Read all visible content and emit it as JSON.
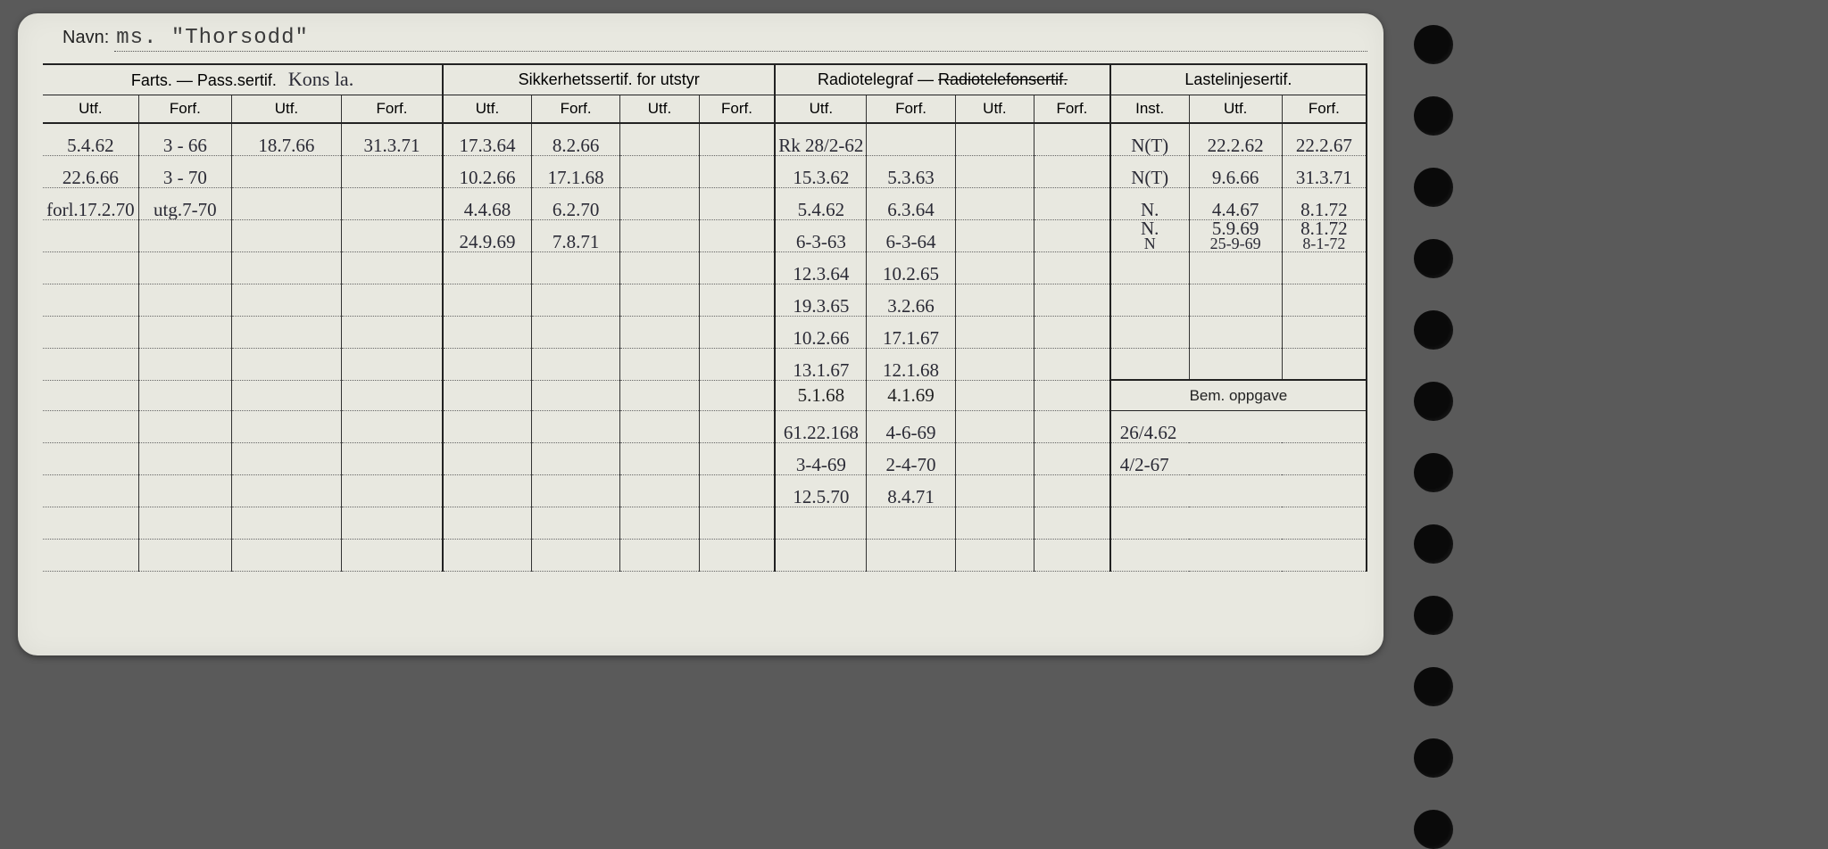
{
  "navn_label": "Navn:",
  "navn_value": "ms. \"Thorsodd\"",
  "sections": {
    "farts": {
      "title": "Farts. — Pass.sertif.",
      "annot": "Kons la.",
      "cols": [
        "Utf.",
        "Forf.",
        "Utf.",
        "Forf."
      ]
    },
    "sikkerhet": {
      "title": "Sikkerhetssertif. for utstyr",
      "cols": [
        "Utf.",
        "Forf.",
        "Utf.",
        "Forf."
      ]
    },
    "radio": {
      "title_a": "Radiotelegraf — ",
      "title_strike": "Radiotelefonsertif.",
      "cols": [
        "Utf.",
        "Forf.",
        "Utf.",
        "Forf."
      ]
    },
    "laste": {
      "title": "Lastelinjesertif.",
      "cols": [
        "Inst.",
        "Utf.",
        "Forf."
      ]
    }
  },
  "bem_header": "Bem. oppgave",
  "col_widths": [
    "6.8%",
    "6.6%",
    "7.8%",
    "7.2%",
    "6.3%",
    "6.3%",
    "5.6%",
    "5.4%",
    "6.5%",
    "6.3%",
    "5.6%",
    "5.4%",
    "5.6%",
    "6.6%",
    "6.0%"
  ],
  "rows": [
    {
      "c": [
        "5.4.62",
        "3 - 66",
        "18.7.66",
        "31.3.71",
        "17.3.64",
        "8.2.66",
        "",
        "",
        "Rk 28/2-62",
        "",
        "",
        "",
        "N(T)",
        "22.2.62",
        "22.2.67"
      ]
    },
    {
      "c": [
        "22.6.66",
        "3 - 70",
        "",
        "",
        "10.2.66",
        "17.1.68",
        "",
        "",
        "15.3.62",
        "5.3.63",
        "",
        "",
        "N(T)",
        "9.6.66",
        "31.3.71"
      ]
    },
    {
      "c": [
        "forl.17.2.70",
        "utg.7-70",
        "",
        "",
        "4.4.68",
        "6.2.70",
        "",
        "",
        "5.4.62",
        "6.3.64",
        "",
        "",
        "N.",
        "4.4.67",
        "8.1.72"
      ]
    },
    {
      "c": [
        "",
        "",
        "",
        "",
        "24.9.69",
        "7.8.71",
        "",
        "",
        "6-3-63",
        "6-3-64",
        "",
        "",
        "N.",
        "5.9.69",
        "8.1.72"
      ],
      "extra_laste": [
        "N",
        "25-9-69",
        "8-1-72"
      ]
    },
    {
      "c": [
        "",
        "",
        "",
        "",
        "",
        "",
        "",
        "",
        "12.3.64",
        "10.2.65",
        "",
        "",
        "",
        "",
        ""
      ]
    },
    {
      "c": [
        "",
        "",
        "",
        "",
        "",
        "",
        "",
        "",
        "19.3.65",
        "3.2.66",
        "",
        "",
        "",
        "",
        ""
      ]
    },
    {
      "c": [
        "",
        "",
        "",
        "",
        "",
        "",
        "",
        "",
        "10.2.66",
        "17.1.67",
        "",
        "",
        "",
        "",
        ""
      ]
    },
    {
      "c": [
        "",
        "",
        "",
        "",
        "",
        "",
        "",
        "",
        "13.1.67",
        "12.1.68",
        "",
        "",
        "",
        "",
        ""
      ]
    },
    {
      "bem_start": true,
      "c": [
        "",
        "",
        "",
        "",
        "",
        "",
        "",
        "",
        "5.1.68",
        "4.1.69",
        "",
        "",
        ""
      ],
      "bem": ""
    },
    {
      "c": [
        "",
        "",
        "",
        "",
        "",
        "",
        "",
        "",
        "61.22.168",
        "4-6-69",
        "",
        "",
        ""
      ],
      "bem": "26/4.62"
    },
    {
      "c": [
        "",
        "",
        "",
        "",
        "",
        "",
        "",
        "",
        "3-4-69",
        "2-4-70",
        "",
        "",
        ""
      ],
      "bem": "4/2-67"
    },
    {
      "c": [
        "",
        "",
        "",
        "",
        "",
        "",
        "",
        "",
        "12.5.70",
        "8.4.71",
        "",
        "",
        ""
      ],
      "bem": ""
    },
    {
      "c": [
        "",
        "",
        "",
        "",
        "",
        "",
        "",
        "",
        "",
        "",
        "",
        "",
        ""
      ],
      "bem": ""
    },
    {
      "c": [
        "",
        "",
        "",
        "",
        "",
        "",
        "",
        "",
        "",
        "",
        "",
        "",
        ""
      ],
      "bem": ""
    }
  ],
  "hole_count": 12
}
